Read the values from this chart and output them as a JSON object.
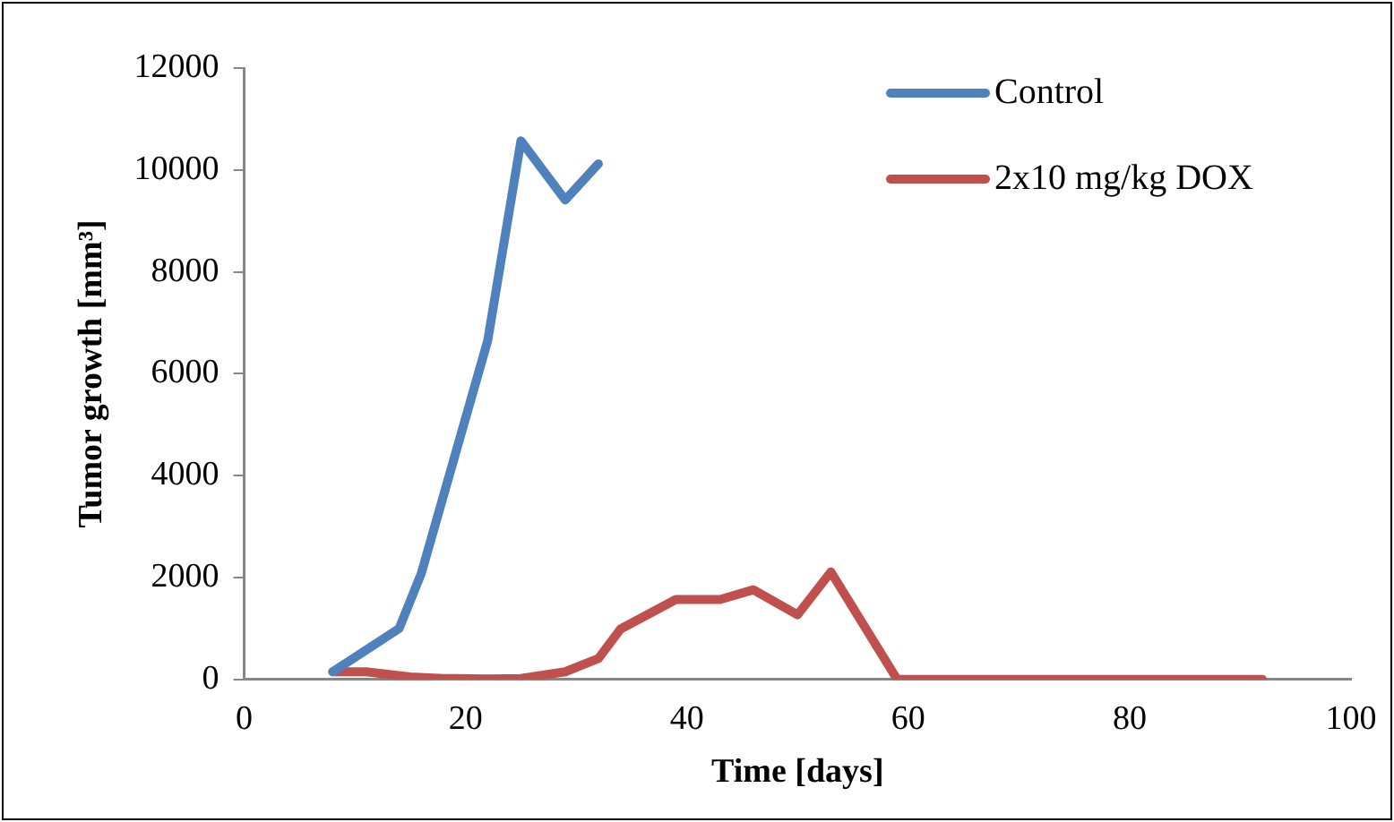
{
  "chart_data": {
    "type": "line",
    "xlabel": "Time [days]",
    "ylabel": "Tumor growth [mm³]",
    "xlim": [
      0,
      100
    ],
    "xticks": [
      0,
      20,
      40,
      60,
      80,
      100
    ],
    "ylim": [
      0,
      12000
    ],
    "yticks": [
      0,
      2000,
      4000,
      6000,
      8000,
      10000,
      12000
    ],
    "grid": false,
    "legend": "top right",
    "marker": "none",
    "line_style": "solid",
    "series": [
      {
        "name": "Control",
        "color": "#4f81bd",
        "x": [
          8,
          14,
          16,
          22,
          25,
          29,
          32
        ],
        "values": [
          150,
          1000,
          2080,
          6650,
          10570,
          9410,
          10120
        ]
      },
      {
        "name": "2x10 mg/kg DOX",
        "color": "#c0504d",
        "x": [
          8,
          11,
          15,
          18,
          22,
          25,
          29,
          32,
          34,
          39,
          43,
          46,
          50,
          53,
          59,
          92
        ],
        "values": [
          150,
          150,
          50,
          20,
          10,
          20,
          150,
          410,
          990,
          1570,
          1570,
          1760,
          1270,
          2110,
          0,
          0
        ]
      }
    ]
  }
}
